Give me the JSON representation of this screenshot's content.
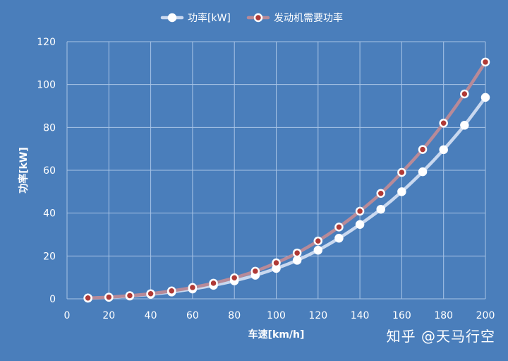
{
  "colors": {
    "background": "#4a7ebb",
    "grid": "#a8c4e6",
    "text": "#ffffff",
    "series1_line": "#c9d8ef",
    "series1_marker_fill": "#ffffff",
    "series2_line": "#b88a98",
    "series2_marker_fill": "#b03a36"
  },
  "watermark": "知乎 @天马行空",
  "chart_data": {
    "type": "line",
    "title": "",
    "xlabel": "车速[km/h]",
    "ylabel": "功率[kW]",
    "xlim": [
      0,
      200
    ],
    "ylim": [
      0,
      120
    ],
    "xticks": [
      0,
      20,
      40,
      60,
      80,
      100,
      120,
      140,
      160,
      180,
      200
    ],
    "yticks": [
      0,
      20,
      40,
      60,
      80,
      100,
      120
    ],
    "grid": true,
    "legend_position": "top-center",
    "x": [
      10,
      20,
      30,
      40,
      50,
      60,
      70,
      80,
      90,
      100,
      110,
      120,
      130,
      140,
      150,
      160,
      170,
      180,
      190,
      200
    ],
    "series": [
      {
        "name": "功率[kW]",
        "values": [
          0.3,
          0.7,
          1.3,
          2.1,
          3.2,
          4.6,
          6.3,
          8.4,
          11.0,
          14.2,
          18.0,
          22.7,
          28.3,
          34.7,
          41.8,
          50.0,
          59.3,
          69.6,
          81.0,
          94.0
        ]
      },
      {
        "name": "发动机需要功率",
        "values": [
          0.4,
          0.8,
          1.5,
          2.4,
          3.7,
          5.3,
          7.3,
          9.8,
          12.9,
          16.8,
          21.4,
          27.0,
          33.5,
          40.9,
          49.2,
          59.0,
          69.7,
          82.0,
          95.6,
          110.5
        ]
      }
    ]
  }
}
